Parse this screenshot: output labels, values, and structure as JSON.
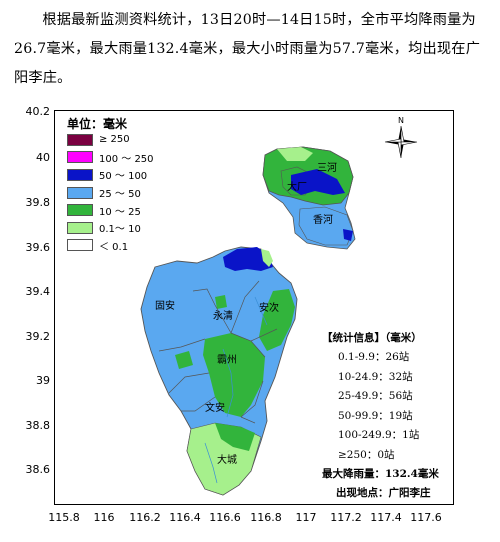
{
  "intro_text": "根据最新监测资料统计，13日20时—14日15时，全市平均降雨量为26.7毫米，最大雨量132.4毫米，最大小时雨量为57.7毫米，均出现在广阳李庄。",
  "legend": {
    "title": "单位：毫米",
    "items": [
      {
        "label": "≥ 250",
        "color": "#7a0040"
      },
      {
        "label": "100 ～ 250",
        "color": "#ff00ff"
      },
      {
        "label": "50 ～ 100",
        "color": "#0a14c8"
      },
      {
        "label": "25 ～ 50",
        "color": "#5aa8f0"
      },
      {
        "label": "10 ～ 25",
        "color": "#32b43c"
      },
      {
        "label": "0.1～ 10",
        "color": "#a6f08c"
      },
      {
        "label": "＜ 0.1",
        "color": "#ffffff"
      }
    ]
  },
  "stats": {
    "header": "【统计信息】（毫米）",
    "rows": [
      "0.1-9.9：26站",
      "10-24.9：32站",
      "25-49.9：56站",
      "50-99.9：19站",
      "100-249.9：1站",
      "≥250：0站"
    ],
    "max_label": "最大降雨量：132.4毫米",
    "location_label": "出现地点：广阳李庄"
  },
  "places": {
    "sanhe": "三河",
    "dachang": "大厂",
    "xianghe": "香河",
    "guan": "固安",
    "yongqing": "永清",
    "anci": "安次",
    "bazhou": "霸州",
    "wenan": "文安",
    "dacheng": "大城"
  },
  "north_label": "N",
  "axes": {
    "y_ticks": [
      "40.2",
      "40",
      "39.8",
      "39.6",
      "39.4",
      "39.2",
      "39",
      "38.8",
      "38.6"
    ],
    "x_ticks": [
      "115.8",
      "116",
      "116.2",
      "116.4",
      "116.6",
      "116.8",
      "117",
      "117.2",
      "117.4",
      "117.6"
    ]
  }
}
